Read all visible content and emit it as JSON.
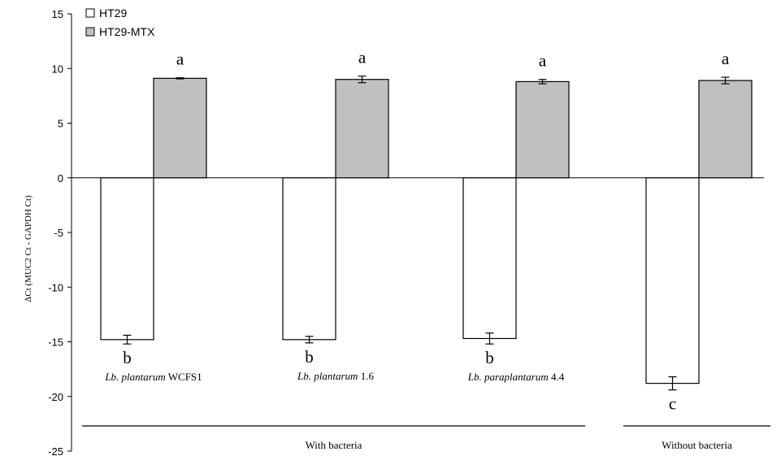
{
  "chart_data": {
    "type": "bar",
    "ylabel": "ΔCt (MUC2 Ct - GAPDH Ct)",
    "ylim": [
      -25,
      15
    ],
    "yticks": [
      15,
      10,
      5,
      0,
      -5,
      -10,
      -15,
      -20,
      -25
    ],
    "legend": {
      "position": "top-left"
    },
    "colors": {
      "HT29": "#ffffff",
      "HT29-MTX": "#c0c0c0"
    },
    "categories": [
      {
        "italic": "Lb. plantarum",
        "rest": " WCFS1"
      },
      {
        "italic": "Lb. plantarum",
        "rest": " 1.6"
      },
      {
        "italic": "Lb. paraplantarum",
        "rest": " 4.4"
      },
      {
        "italic": "",
        "rest": ""
      }
    ],
    "series": [
      {
        "name": "HT29",
        "values": [
          -14.8,
          -14.8,
          -14.7,
          -18.8
        ],
        "errors": [
          0.4,
          0.3,
          0.5,
          0.6
        ],
        "letters": [
          "b",
          "b",
          "b",
          "c"
        ]
      },
      {
        "name": "HT29-MTX",
        "values": [
          9.1,
          9.0,
          8.8,
          8.9
        ],
        "errors": [
          0.05,
          0.3,
          0.2,
          0.3
        ],
        "letters": [
          "a",
          "a",
          "a",
          "a"
        ]
      }
    ],
    "groups": [
      {
        "label": "With bacteria",
        "categories": [
          0,
          1,
          2
        ]
      },
      {
        "label": "Without bacteria",
        "categories": [
          3
        ]
      }
    ]
  }
}
